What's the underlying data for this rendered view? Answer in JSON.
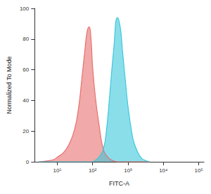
{
  "chart_data": {
    "type": "area",
    "x_label": "FITC-A",
    "y_label": "Normalized To Mode",
    "log": "x",
    "grid": false,
    "xlim": [
      2.3,
      140000
    ],
    "xticks": [
      {
        "value": 10,
        "label": "10¹"
      },
      {
        "value": 100,
        "label": "10²"
      },
      {
        "value": 1000,
        "label": "10³"
      },
      {
        "value": 10000,
        "label": "10⁴"
      },
      {
        "value": 100000,
        "label": "10⁵"
      }
    ],
    "ylim": [
      0,
      100
    ],
    "yticks": [
      0,
      20,
      40,
      60,
      80,
      100
    ],
    "x": [
      3,
      5,
      8,
      10,
      15,
      20,
      30,
      40,
      50,
      60,
      70,
      80,
      90,
      100,
      120,
      150,
      200,
      250,
      300,
      400,
      500,
      600,
      700,
      850,
      1000,
      1300,
      1500,
      2000,
      2500,
      3000,
      4000
    ],
    "series": [
      {
        "color": "#e8706f",
        "values": [
          0,
          0.5,
          1.5,
          3,
          6,
          10,
          20,
          35,
          55,
          72,
          85,
          88,
          80,
          62,
          42,
          25,
          8,
          4,
          2,
          0.5,
          0,
          0,
          0,
          0,
          0,
          0,
          0,
          0,
          0,
          0,
          0
        ]
      },
      {
        "color": "#3cc8dc",
        "values": [
          0,
          0,
          0,
          0,
          0,
          0,
          0,
          0,
          0,
          0,
          0,
          0,
          0,
          0,
          1,
          3,
          8,
          22,
          42,
          75,
          94,
          88,
          72,
          52,
          36,
          18,
          12,
          5,
          2,
          1,
          0
        ]
      }
    ]
  }
}
